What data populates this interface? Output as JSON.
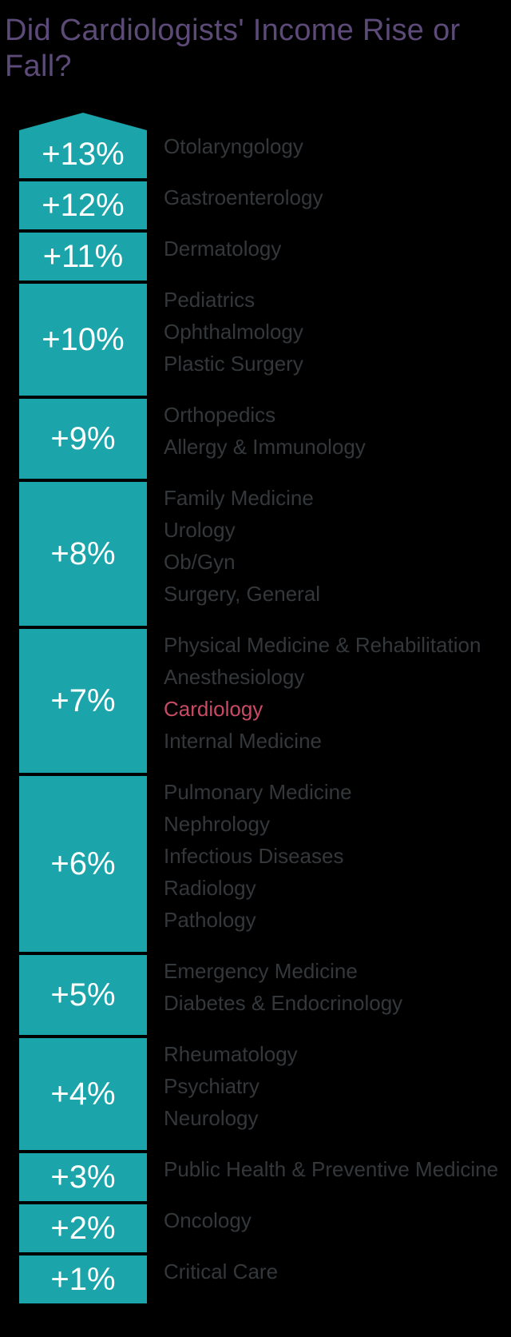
{
  "title": {
    "lines": [
      "Did Cardiologists' Income Rise or",
      "Fall?"
    ],
    "full_text": "Did Cardiologists' Income Rise or Fall?"
  },
  "chart_data": {
    "type": "bar",
    "title": "Did Cardiologists' Income Rise or Fall?",
    "orientation": "vertical-list",
    "value_unit": "percent change in income",
    "highlighted_specialty": "Cardiology",
    "rows": [
      {
        "change": "+13%",
        "value": 13,
        "specialties": [
          "Otolaryngology"
        ]
      },
      {
        "change": "+12%",
        "value": 12,
        "specialties": [
          "Gastroenterology"
        ]
      },
      {
        "change": "+11%",
        "value": 11,
        "specialties": [
          "Dermatology"
        ]
      },
      {
        "change": "+10%",
        "value": 10,
        "specialties": [
          "Pediatrics",
          "Ophthalmology",
          "Plastic Surgery"
        ]
      },
      {
        "change": "+9%",
        "value": 9,
        "specialties": [
          "Orthopedics",
          "Allergy & Immunology"
        ]
      },
      {
        "change": "+8%",
        "value": 8,
        "specialties": [
          "Family Medicine",
          "Urology",
          "Ob/Gyn",
          "Surgery, General"
        ]
      },
      {
        "change": "+7%",
        "value": 7,
        "specialties": [
          "Physical Medicine & Rehabilitation",
          "Anesthesiology",
          "Cardiology",
          "Internal Medicine"
        ]
      },
      {
        "change": "+6%",
        "value": 6,
        "specialties": [
          "Pulmonary Medicine",
          "Nephrology",
          "Infectious Diseases",
          "Radiology",
          "Pathology"
        ]
      },
      {
        "change": "+5%",
        "value": 5,
        "specialties": [
          "Emergency Medicine",
          "Diabetes & Endocrinology"
        ]
      },
      {
        "change": "+4%",
        "value": 4,
        "specialties": [
          "Rheumatology",
          "Psychiatry",
          "Neurology"
        ]
      },
      {
        "change": "+3%",
        "value": 3,
        "specialties": [
          "Public Health & Preventive Medicine"
        ]
      },
      {
        "change": "+2%",
        "value": 2,
        "specialties": [
          "Oncology"
        ]
      },
      {
        "change": "+1%",
        "value": 1,
        "specialties": [
          "Critical Care"
        ]
      }
    ],
    "colors": {
      "background": "#000000",
      "bar": "#1ba5aa",
      "percent_text": "#ffffff",
      "title_text": "#5c4a78",
      "specialty_text": "#34383b",
      "highlight_text": "#c84a63"
    },
    "legend_position": "none",
    "grid": false
  }
}
